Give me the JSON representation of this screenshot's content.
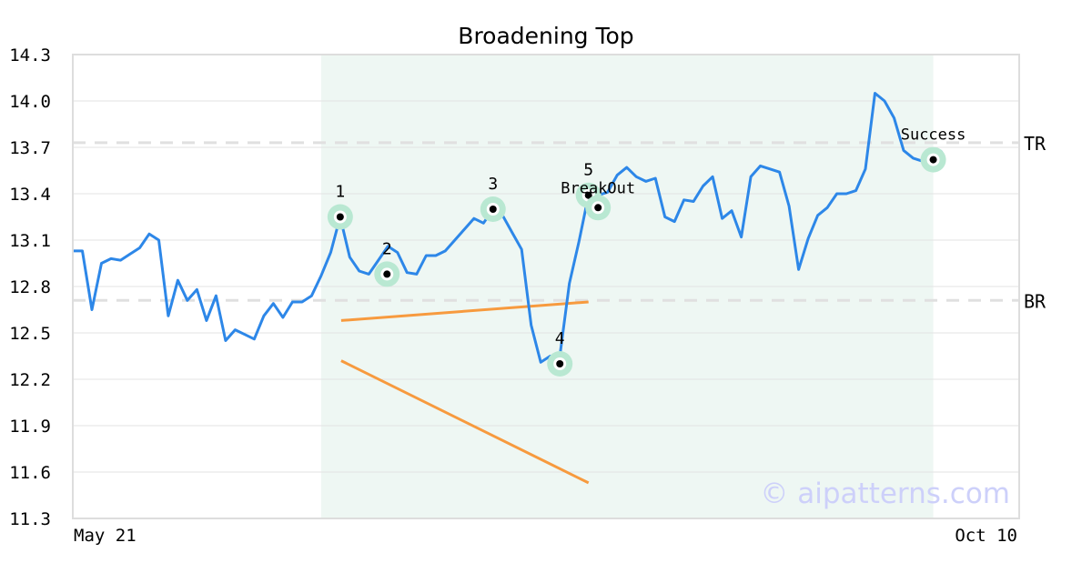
{
  "chart_data": {
    "type": "line",
    "title": "Broadening Top",
    "xlabel": "",
    "ylabel": "",
    "x_tick_labels": [
      "May 21",
      "Oct 10"
    ],
    "y_ticks": [
      "11.3",
      "11.6",
      "11.9",
      "12.2",
      "12.5",
      "12.8",
      "13.1",
      "13.4",
      "13.7",
      "14.0",
      "14.3"
    ],
    "ylim": [
      11.3,
      14.3
    ],
    "grid": true,
    "line_color": "#2d87e8",
    "values": [
      13.03,
      13.03,
      12.65,
      12.95,
      12.98,
      12.97,
      13.01,
      13.05,
      13.14,
      13.1,
      12.61,
      12.84,
      12.71,
      12.78,
      12.58,
      12.74,
      12.45,
      12.52,
      12.49,
      12.46,
      12.61,
      12.69,
      12.6,
      12.7,
      12.7,
      12.74,
      12.87,
      13.02,
      13.25,
      12.99,
      12.9,
      12.88,
      12.97,
      13.06,
      13.02,
      12.89,
      12.88,
      13.0,
      13.0,
      13.03,
      13.1,
      13.17,
      13.24,
      13.21,
      13.3,
      13.26,
      13.15,
      13.04,
      12.55,
      12.31,
      12.35,
      12.35,
      12.82,
      13.09,
      13.39,
      13.39,
      13.41,
      13.52,
      13.57,
      13.51,
      13.48,
      13.5,
      13.25,
      13.22,
      13.36,
      13.35,
      13.45,
      13.51,
      13.24,
      13.29,
      13.12,
      13.51,
      13.58,
      13.56,
      13.54,
      13.32,
      12.91,
      13.11,
      13.26,
      13.31,
      13.4,
      13.4,
      13.42,
      13.56,
      14.05,
      14.0,
      13.89,
      13.68,
      13.63,
      13.61,
      13.61,
      13.68
    ],
    "pattern_region": {
      "start_index": 26,
      "end_index": 90.1,
      "color": "#eef7f3"
    },
    "levels": [
      {
        "label": "TR",
        "value": 13.73
      },
      {
        "label": "BR",
        "value": 12.71
      }
    ],
    "trendlines": [
      {
        "from": [
          28.1,
          12.58
        ],
        "to": [
          54.0,
          12.7
        ],
        "color": "#f79a3e"
      },
      {
        "from": [
          28.1,
          12.32
        ],
        "to": [
          54.0,
          11.53
        ],
        "color": "#f79a3e"
      }
    ],
    "points": [
      {
        "label": "1",
        "index": 28.0,
        "value": 13.25,
        "label_pos": "above"
      },
      {
        "label": "2",
        "index": 32.9,
        "value": 12.88,
        "label_pos": "above"
      },
      {
        "label": "3",
        "index": 44.0,
        "value": 13.3,
        "label_pos": "above"
      },
      {
        "label": "4",
        "index": 51.0,
        "value": 12.3,
        "label_pos": "above"
      },
      {
        "label": "5",
        "index": 54.0,
        "value": 13.39,
        "label_pos": "above"
      },
      {
        "label": "BreakOut",
        "index": 55.0,
        "value": 13.31,
        "label_pos": "above-far"
      },
      {
        "label": "Success",
        "index": 90.1,
        "value": 13.62,
        "label_pos": "above"
      }
    ],
    "watermark": "© aipatterns.com"
  }
}
